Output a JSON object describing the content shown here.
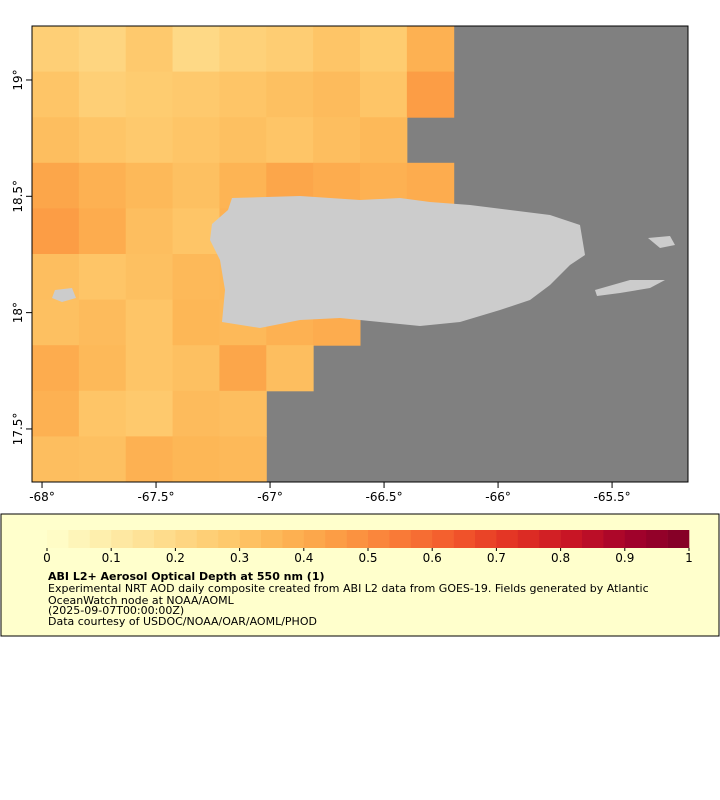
{
  "chart_data": {
    "type": "map",
    "xlim": [
      -68.044,
      -65.167
    ],
    "ylim": [
      17.272,
      19.232
    ],
    "xticks": [
      {
        "value": -68,
        "label": "-68°"
      },
      {
        "value": -67.5,
        "label": "-67.5°"
      },
      {
        "value": -67,
        "label": "-67°"
      },
      {
        "value": -66.5,
        "label": "-66.5°"
      },
      {
        "value": -66,
        "label": "-66°"
      },
      {
        "value": -65.5,
        "label": "-65.5°"
      }
    ],
    "yticks": [
      {
        "value": 17.5,
        "label": "17.5°"
      },
      {
        "value": 18,
        "label": "18°"
      },
      {
        "value": 18.5,
        "label": "18.5°"
      },
      {
        "value": 19,
        "label": "19°"
      }
    ],
    "values": [
      [
        0.25,
        0.22,
        0.28,
        0.2,
        0.24,
        0.26,
        0.3,
        0.27,
        0.38,
        null,
        null,
        null,
        null,
        null
      ],
      [
        0.3,
        0.25,
        0.27,
        0.28,
        0.3,
        0.32,
        0.34,
        0.3,
        0.45,
        null,
        null,
        null,
        null,
        null
      ],
      [
        0.33,
        0.3,
        0.28,
        0.3,
        0.32,
        0.3,
        0.33,
        0.35,
        null,
        null,
        null,
        null,
        null,
        null
      ],
      [
        0.42,
        0.38,
        0.35,
        0.32,
        0.37,
        0.42,
        0.4,
        0.38,
        0.4,
        null,
        null,
        null,
        null,
        null
      ],
      [
        0.45,
        0.4,
        0.33,
        0.3,
        0.38,
        null,
        null,
        null,
        null,
        null,
        null,
        null,
        null,
        null
      ],
      [
        0.33,
        0.3,
        0.32,
        0.35,
        0.36,
        null,
        null,
        null,
        null,
        null,
        null,
        null,
        null,
        null
      ],
      [
        0.32,
        0.34,
        0.3,
        0.36,
        0.35,
        0.38,
        0.4,
        null,
        null,
        null,
        null,
        null,
        null,
        null
      ],
      [
        0.4,
        0.35,
        0.3,
        0.32,
        0.42,
        0.33,
        null,
        null,
        null,
        null,
        null,
        null,
        null,
        null
      ],
      [
        0.38,
        0.3,
        0.28,
        0.34,
        0.33,
        null,
        null,
        null,
        null,
        null,
        null,
        null,
        null,
        null
      ],
      [
        0.33,
        0.32,
        0.38,
        0.36,
        0.35,
        null,
        null,
        null,
        null,
        null,
        null,
        null,
        null,
        null
      ]
    ],
    "nodata_color": "#808080",
    "land_color": "#cccccc",
    "colorbar": {
      "range": [
        0,
        1
      ],
      "ticks": [
        0,
        0.1,
        0.2,
        0.3,
        0.4,
        0.5,
        0.6,
        0.7,
        0.8,
        0.9,
        1
      ],
      "colors": [
        "#ffffcc",
        "#feedaa",
        "#fedc8c",
        "#fecb6f",
        "#fdb655",
        "#fc9c44",
        "#f97c38",
        "#f2582b",
        "#e23224",
        "#c81525",
        "#a3022b",
        "#800026"
      ]
    },
    "title": "ABI L2+ Aerosol Optical Depth at 550 nm (1)",
    "notes": [
      "Experimental NRT AOD daily composite created from ABI L2 data from GOES-19. Fields generated by Atlantic",
      "OceanWatch node at NOAA/AOML",
      "(2025-09-07T00:00:00Z)",
      "Data courtesy of USDOC/NOAA/OAR/AOML/PHOD"
    ]
  }
}
